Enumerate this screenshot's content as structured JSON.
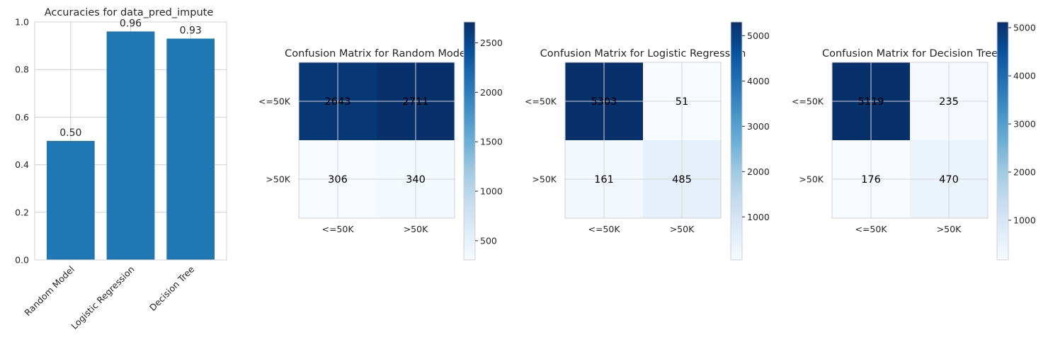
{
  "chart_data": [
    {
      "type": "bar",
      "title": "Accuracies for data_pred_impute",
      "categories": [
        "Random Model",
        "Logistic Regression",
        "Decision Tree"
      ],
      "values": [
        0.5,
        0.96,
        0.93
      ],
      "value_labels": [
        "0.50",
        "0.96",
        "0.93"
      ],
      "ylim": [
        0,
        1
      ],
      "yticks": [
        "0.0",
        "0.2",
        "0.4",
        "0.6",
        "0.8",
        "1.0"
      ],
      "grid": true,
      "color": "#1f77b4"
    },
    {
      "type": "heatmap",
      "title": "Confusion Matrix for Random Model",
      "rows": [
        "<=50K",
        ">50K"
      ],
      "cols": [
        "<=50K",
        ">50K"
      ],
      "values": [
        [
          2643,
          2711
        ],
        [
          306,
          340
        ]
      ],
      "colorbar": {
        "range": [
          306,
          2711
        ],
        "ticks": [
          "500",
          "1000",
          "1500",
          "2000",
          "2500"
        ]
      },
      "colormap": "Blues"
    },
    {
      "type": "heatmap",
      "title": "Confusion Matrix for Logistic Regression",
      "rows": [
        "<=50K",
        ">50K"
      ],
      "cols": [
        "<=50K",
        ">50K"
      ],
      "values": [
        [
          5303,
          51
        ],
        [
          161,
          485
        ]
      ],
      "colorbar": {
        "range": [
          51,
          5303
        ],
        "ticks": [
          "1000",
          "2000",
          "3000",
          "4000",
          "5000"
        ]
      },
      "colormap": "Blues"
    },
    {
      "type": "heatmap",
      "title": "Confusion Matrix for Decision Tree",
      "rows": [
        "<=50K",
        ">50K"
      ],
      "cols": [
        "<=50K",
        ">50K"
      ],
      "values": [
        [
          5119,
          235
        ],
        [
          176,
          470
        ]
      ],
      "colorbar": {
        "range": [
          176,
          5119
        ],
        "ticks": [
          "1000",
          "2000",
          "3000",
          "4000",
          "5000"
        ]
      },
      "colormap": "Blues"
    }
  ]
}
